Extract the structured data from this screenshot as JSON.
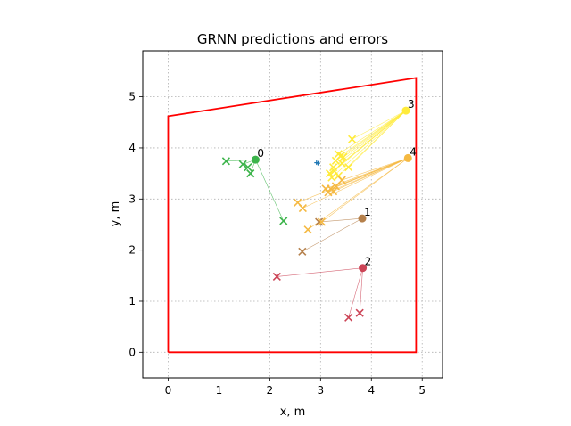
{
  "chart_data": {
    "type": "scatter",
    "title": "GRNN predictions and errors",
    "xlabel": "x, m",
    "ylabel": "y, m",
    "xlim": [
      -0.5,
      5.4
    ],
    "ylim": [
      -0.5,
      5.9
    ],
    "xticks": [
      0,
      1,
      2,
      3,
      4,
      5
    ],
    "yticks": [
      0,
      1,
      2,
      3,
      4,
      5
    ],
    "grid": true,
    "boundary": {
      "color": "#ff0000",
      "points": [
        [
          0,
          0
        ],
        [
          4.88,
          0
        ],
        [
          4.88,
          5.37
        ],
        [
          0,
          4.62
        ],
        [
          0,
          0
        ]
      ]
    },
    "centre_marker": {
      "color": "#1f77b4",
      "points": [
        [
          2.92,
          3.71
        ],
        [
          2.95,
          3.7
        ]
      ]
    },
    "anchors": [
      {
        "label": "0",
        "color": "#3cb44b",
        "x": 1.72,
        "y": 3.77,
        "predictions": [
          [
            1.14,
            3.74
          ],
          [
            1.47,
            3.68
          ],
          [
            1.57,
            3.62
          ],
          [
            1.62,
            3.5
          ],
          [
            2.27,
            2.57
          ]
        ]
      },
      {
        "label": "1",
        "color": "#b5804b",
        "x": 3.82,
        "y": 2.62,
        "predictions": [
          [
            2.64,
            1.97
          ],
          [
            2.97,
            2.55
          ]
        ]
      },
      {
        "label": "2",
        "color": "#cc4456",
        "x": 3.83,
        "y": 1.65,
        "predictions": [
          [
            2.14,
            1.48
          ],
          [
            3.55,
            0.68
          ],
          [
            3.77,
            0.77
          ]
        ]
      },
      {
        "label": "3",
        "color": "#ffeb3b",
        "x": 4.68,
        "y": 4.73,
        "predictions": [
          [
            3.62,
            4.17
          ],
          [
            3.35,
            3.88
          ],
          [
            3.4,
            3.85
          ],
          [
            3.45,
            3.82
          ],
          [
            3.3,
            3.75
          ],
          [
            3.42,
            3.7
          ],
          [
            3.25,
            3.62
          ],
          [
            3.55,
            3.62
          ],
          [
            3.27,
            3.55
          ],
          [
            3.18,
            3.5
          ],
          [
            3.35,
            3.45
          ],
          [
            3.22,
            3.42
          ]
        ]
      },
      {
        "label": "4",
        "color": "#f5b942",
        "x": 4.72,
        "y": 3.8,
        "predictions": [
          [
            3.42,
            3.37
          ],
          [
            3.3,
            3.25
          ],
          [
            3.1,
            3.2
          ],
          [
            3.2,
            3.2
          ],
          [
            3.25,
            3.15
          ],
          [
            3.15,
            3.13
          ],
          [
            2.55,
            2.93
          ],
          [
            2.65,
            2.82
          ],
          [
            3.02,
            2.55
          ],
          [
            2.75,
            2.4
          ]
        ]
      }
    ]
  }
}
